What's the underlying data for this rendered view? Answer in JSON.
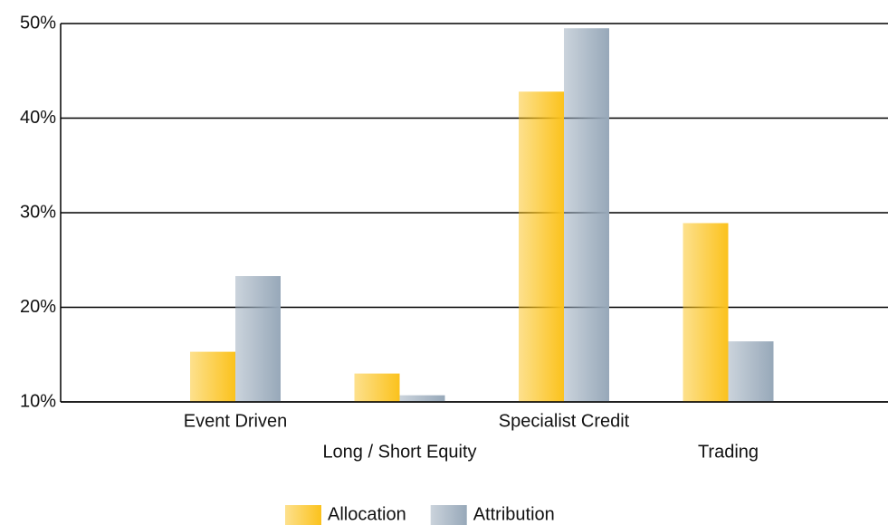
{
  "chart_data": {
    "type": "bar",
    "categories": [
      "Event Driven",
      "Long / Short Equity",
      "Specialist Credit",
      "Trading"
    ],
    "series": [
      {
        "name": "Allocation",
        "color": "#fbc21c",
        "values": [
          15.3,
          13.0,
          42.8,
          28.9
        ]
      },
      {
        "name": "Attribution",
        "color": "#97a8b9",
        "values": [
          23.3,
          10.7,
          49.5,
          16.4
        ]
      }
    ],
    "ylim": [
      10,
      50
    ],
    "yticks": [
      {
        "value": 10,
        "label": "10%"
      },
      {
        "value": 20,
        "label": "20%"
      },
      {
        "value": 30,
        "label": "30%"
      },
      {
        "value": 40,
        "label": "40%"
      },
      {
        "value": 50,
        "label": "50%"
      }
    ],
    "grid": true,
    "legend": "bottom"
  }
}
